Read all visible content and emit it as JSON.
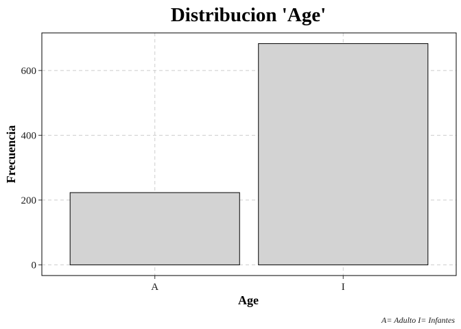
{
  "chart_data": {
    "type": "bar",
    "title": "Distribucion 'Age'",
    "xlabel": "Age",
    "ylabel": "Frecuencia",
    "categories": [
      "A",
      "I"
    ],
    "values": [
      223,
      683
    ],
    "ylim": [
      -33,
      716
    ],
    "yticks": [
      0,
      200,
      400,
      600
    ],
    "ytick_labels": [
      "0",
      "200",
      "400",
      "600"
    ],
    "grid": true,
    "legend": "none",
    "caption": "A= Adulto   I= Infantes",
    "colors": {
      "bar_fill": "#d3d3d3",
      "bar_stroke": "#000000",
      "grid": "#cccccc"
    }
  }
}
